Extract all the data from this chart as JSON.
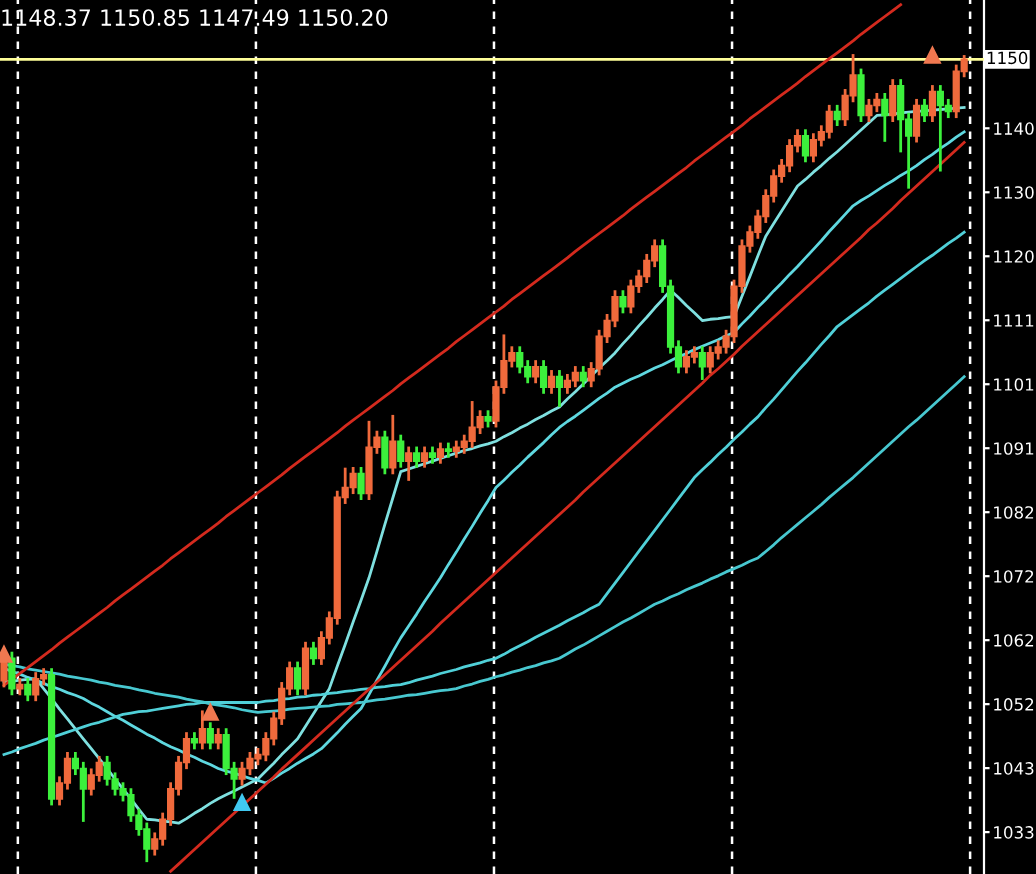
{
  "chart_data": {
    "type": "candlestick",
    "title": "1148.37 1150.85 1147.49 1150.20",
    "categories": [
      null,
      null,
      null,
      null,
      null,
      null,
      null,
      null,
      null,
      null,
      null,
      null,
      null,
      null,
      null,
      null,
      null,
      null,
      null,
      null,
      null,
      null,
      null,
      null,
      null,
      null,
      null,
      null,
      null,
      null,
      null,
      null,
      null,
      null,
      null,
      null,
      null,
      null,
      null,
      null,
      null,
      null,
      null,
      null,
      null,
      null,
      null,
      null,
      null,
      null,
      null,
      null,
      null,
      null,
      null,
      null,
      null,
      null,
      null,
      null,
      null,
      null,
      null,
      null,
      null,
      null,
      null,
      null,
      null,
      null,
      null,
      null,
      null,
      null,
      null,
      null,
      null,
      null,
      null,
      null,
      null,
      null,
      null,
      null,
      null,
      null,
      null,
      null,
      null,
      null,
      null,
      null,
      null,
      null,
      null,
      null,
      null,
      null,
      null,
      null,
      null,
      null,
      null,
      null,
      null,
      null,
      null,
      null,
      null,
      null,
      null,
      null,
      null,
      null,
      null,
      null,
      null,
      null,
      null,
      null,
      null,
      null
    ],
    "colors": [
      "#f06a3c",
      "#3cf03c",
      "#f06a3c",
      "#3cf03c",
      "#f06a3c",
      "#f06a3c",
      "#3cf03c",
      "#f06a3c",
      "#f06a3c",
      "#3cf03c",
      "#3cf03c",
      "#f06a3c",
      "#f06a3c",
      "#3cf03c",
      "#3cf03c",
      "#3cf03c",
      "#3cf03c",
      "#3cf03c",
      "#3cf03c",
      "#f06a3c",
      "#f06a3c",
      "#f06a3c",
      "#f06a3c",
      "#f06a3c",
      "#3cf03c",
      "#f06a3c",
      "#3cf03c",
      "#f06a3c",
      "#3cf03c",
      "#3cf03c",
      "#f06a3c",
      "#f06a3c",
      "#f06a3c",
      "#f06a3c",
      "#f06a3c",
      "#f06a3c",
      "#f06a3c",
      "#3cf03c",
      "#f06a3c",
      "#3cf03c",
      "#f06a3c",
      "#f06a3c",
      "#f06a3c",
      "#f06a3c",
      "#f06a3c",
      "#3cf03c",
      "#f06a3c",
      "#f06a3c",
      "#3cf03c",
      "#f06a3c",
      "#3cf03c",
      "#f06a3c",
      "#3cf03c",
      "#f06a3c",
      "#3cf03c",
      "#f06a3c",
      "#3cf03c",
      "#f06a3c",
      "#f06a3c",
      "#f06a3c",
      "#f06a3c",
      "#3cf03c",
      "#f06a3c",
      "#f06a3c",
      "#f06a3c",
      "#3cf03c",
      "#3cf03c",
      "#f06a3c",
      "#3cf03c",
      "#f06a3c",
      "#3cf03c",
      "#f06a3c",
      "#f06a3c",
      "#3cf03c",
      "#f06a3c",
      "#f06a3c",
      "#f06a3c",
      "#f06a3c",
      "#3cf03c",
      "#f06a3c",
      "#f06a3c",
      "#f06a3c",
      "#f06a3c",
      "#3cf03c",
      "#3cf03c",
      "#3cf03c",
      "#f06a3c",
      "#f06a3c",
      "#3cf03c",
      "#f06a3c",
      "#f06a3c",
      "#f06a3c",
      "#f06a3c",
      "#f06a3c",
      "#f06a3c",
      "#f06a3c",
      "#f06a3c",
      "#f06a3c",
      "#f06a3c",
      "#f06a3c",
      "#f06a3c",
      "#3cf03c",
      "#f06a3c",
      "#f06a3c",
      "#f06a3c",
      "#3cf03c",
      "#f06a3c",
      "#f06a3c",
      "#3cf03c",
      "#f06a3c",
      "#f06a3c",
      "#3cf03c",
      "#f06a3c",
      "#3cf03c",
      "#3cf03c",
      "#f06a3c",
      "#3cf03c",
      "#f06a3c",
      "#3cf03c",
      "#3cf03c",
      "#f06a3c",
      "#f06a3c"
    ],
    "ohlc": [
      [
        1056.0,
        1060.4,
        1055.0,
        1059.4
      ],
      [
        1059.4,
        1060.4,
        1053.8,
        1054.8
      ],
      [
        1054.8,
        1056.4,
        1053.8,
        1055.4
      ],
      [
        1055.4,
        1056.4,
        1052.9,
        1053.9
      ],
      [
        1053.9,
        1057.3,
        1052.9,
        1056.3
      ],
      [
        1056.3,
        1057.9,
        1055.3,
        1056.9
      ],
      [
        1056.9,
        1057.9,
        1037.1,
        1038.1
      ],
      [
        1038.1,
        1041.5,
        1037.1,
        1040.5
      ],
      [
        1040.5,
        1045.2,
        1039.5,
        1044.2
      ],
      [
        1044.2,
        1045.2,
        1041.7,
        1042.7
      ],
      [
        1042.7,
        1043.7,
        1034.6,
        1039.6
      ],
      [
        1039.6,
        1042.7,
        1038.6,
        1041.7
      ],
      [
        1041.7,
        1044.6,
        1040.7,
        1043.6
      ],
      [
        1043.6,
        1044.6,
        1040.1,
        1041.1
      ],
      [
        1041.1,
        1042.1,
        1038.6,
        1039.6
      ],
      [
        1039.6,
        1040.6,
        1037.7,
        1038.7
      ],
      [
        1038.7,
        1039.7,
        1034.6,
        1035.6
      ],
      [
        1035.6,
        1036.6,
        1032.5,
        1033.5
      ],
      [
        1033.5,
        1034.5,
        1028.5,
        1030.5
      ],
      [
        1030.5,
        1033.0,
        1029.5,
        1032.0
      ],
      [
        1032.0,
        1036.0,
        1031.0,
        1035.0
      ],
      [
        1035.0,
        1040.6,
        1034.0,
        1039.6
      ],
      [
        1039.6,
        1044.6,
        1038.6,
        1043.6
      ],
      [
        1043.6,
        1048.2,
        1042.6,
        1047.2
      ],
      [
        1047.2,
        1048.2,
        1045.6,
        1046.6
      ],
      [
        1046.6,
        1051.5,
        1045.6,
        1048.7
      ],
      [
        1048.7,
        1049.7,
        1045.6,
        1046.6
      ],
      [
        1046.6,
        1048.8,
        1045.6,
        1047.8
      ],
      [
        1047.8,
        1048.8,
        1041.7,
        1042.7
      ],
      [
        1042.7,
        1043.7,
        1038.1,
        1041.1
      ],
      [
        1041.1,
        1043.7,
        1040.1,
        1042.7
      ],
      [
        1042.7,
        1045.2,
        1041.7,
        1044.2
      ],
      [
        1044.2,
        1045.8,
        1043.2,
        1044.8
      ],
      [
        1044.8,
        1048.2,
        1043.8,
        1047.2
      ],
      [
        1047.2,
        1051.3,
        1046.2,
        1050.3
      ],
      [
        1050.3,
        1055.8,
        1049.3,
        1054.8
      ],
      [
        1054.8,
        1058.9,
        1053.8,
        1057.9
      ],
      [
        1057.9,
        1058.9,
        1053.8,
        1054.8
      ],
      [
        1054.8,
        1061.9,
        1053.8,
        1060.9
      ],
      [
        1060.9,
        1061.9,
        1058.4,
        1059.4
      ],
      [
        1059.4,
        1063.5,
        1058.4,
        1062.5
      ],
      [
        1062.5,
        1066.5,
        1061.5,
        1065.5
      ],
      [
        1065.5,
        1084.8,
        1064.5,
        1083.8
      ],
      [
        1083.8,
        1088.3,
        1082.8,
        1085.3
      ],
      [
        1085.3,
        1088.4,
        1084.3,
        1087.4
      ],
      [
        1087.4,
        1088.4,
        1083.4,
        1084.4
      ],
      [
        1084.4,
        1095.4,
        1083.4,
        1091.4
      ],
      [
        1091.4,
        1093.9,
        1090.4,
        1092.9
      ],
      [
        1092.9,
        1093.9,
        1087.3,
        1088.3
      ],
      [
        1088.3,
        1096.3,
        1087.3,
        1092.3
      ],
      [
        1092.3,
        1093.3,
        1088.3,
        1089.3
      ],
      [
        1089.3,
        1091.5,
        1086.3,
        1090.5
      ],
      [
        1090.5,
        1091.5,
        1088.3,
        1089.3
      ],
      [
        1089.3,
        1091.5,
        1088.3,
        1090.5
      ],
      [
        1090.5,
        1091.5,
        1088.9,
        1089.9
      ],
      [
        1089.9,
        1092.1,
        1088.9,
        1091.1
      ],
      [
        1091.1,
        1092.1,
        1089.8,
        1090.8
      ],
      [
        1090.8,
        1092.4,
        1089.8,
        1091.4
      ],
      [
        1091.4,
        1093.3,
        1090.4,
        1092.3
      ],
      [
        1092.3,
        1098.4,
        1091.3,
        1094.4
      ],
      [
        1094.4,
        1097.0,
        1093.4,
        1096.0
      ],
      [
        1096.0,
        1097.0,
        1094.4,
        1095.4
      ],
      [
        1095.4,
        1101.5,
        1094.4,
        1100.5
      ],
      [
        1100.5,
        1108.5,
        1099.5,
        1104.5
      ],
      [
        1104.5,
        1106.7,
        1103.5,
        1105.7
      ],
      [
        1105.7,
        1106.7,
        1102.6,
        1103.6
      ],
      [
        1103.6,
        1104.6,
        1101.1,
        1102.1
      ],
      [
        1102.1,
        1104.6,
        1101.1,
        1103.6
      ],
      [
        1103.6,
        1104.6,
        1099.5,
        1100.5
      ],
      [
        1100.5,
        1103.1,
        1099.5,
        1102.1
      ],
      [
        1102.1,
        1103.1,
        1097.5,
        1100.5
      ],
      [
        1100.5,
        1102.5,
        1099.5,
        1101.5
      ],
      [
        1101.5,
        1103.7,
        1100.5,
        1102.7
      ],
      [
        1102.7,
        1103.7,
        1100.5,
        1101.5
      ],
      [
        1101.5,
        1104.3,
        1100.5,
        1103.3
      ],
      [
        1103.3,
        1109.2,
        1102.3,
        1108.2
      ],
      [
        1108.2,
        1111.6,
        1107.2,
        1110.6
      ],
      [
        1110.6,
        1115.2,
        1109.6,
        1114.2
      ],
      [
        1114.2,
        1115.2,
        1111.7,
        1112.7
      ],
      [
        1112.7,
        1116.8,
        1111.7,
        1115.8
      ],
      [
        1115.8,
        1118.3,
        1114.8,
        1117.3
      ],
      [
        1117.3,
        1120.7,
        1116.3,
        1119.7
      ],
      [
        1119.7,
        1122.9,
        1118.7,
        1121.9
      ],
      [
        1121.9,
        1122.9,
        1114.8,
        1115.8
      ],
      [
        1115.8,
        1116.8,
        1105.6,
        1106.6
      ],
      [
        1106.6,
        1107.6,
        1102.6,
        1103.6
      ],
      [
        1103.6,
        1106.1,
        1102.6,
        1105.1
      ],
      [
        1105.1,
        1106.7,
        1104.1,
        1105.7
      ],
      [
        1105.7,
        1106.7,
        1101.6,
        1103.6
      ],
      [
        1103.6,
        1106.7,
        1102.6,
        1105.7
      ],
      [
        1105.7,
        1107.6,
        1104.7,
        1106.6
      ],
      [
        1106.6,
        1109.2,
        1105.6,
        1108.2
      ],
      [
        1108.2,
        1116.8,
        1107.2,
        1115.8
      ],
      [
        1115.8,
        1122.9,
        1114.8,
        1121.9
      ],
      [
        1121.9,
        1125.0,
        1120.9,
        1124.0
      ],
      [
        1124.0,
        1127.4,
        1123.0,
        1126.4
      ],
      [
        1126.4,
        1130.5,
        1125.4,
        1129.5
      ],
      [
        1129.5,
        1133.5,
        1128.5,
        1132.5
      ],
      [
        1132.5,
        1135.1,
        1131.5,
        1134.1
      ],
      [
        1134.1,
        1138.1,
        1133.1,
        1137.1
      ],
      [
        1137.1,
        1139.6,
        1136.1,
        1138.6
      ],
      [
        1138.6,
        1139.6,
        1134.6,
        1135.6
      ],
      [
        1135.6,
        1139.0,
        1134.6,
        1138.0
      ],
      [
        1138.0,
        1140.2,
        1137.0,
        1139.2
      ],
      [
        1139.2,
        1143.3,
        1138.2,
        1142.3
      ],
      [
        1142.3,
        1143.3,
        1140.1,
        1141.1
      ],
      [
        1141.1,
        1145.7,
        1140.1,
        1144.7
      ],
      [
        1144.7,
        1151.0,
        1143.7,
        1147.8
      ],
      [
        1147.8,
        1148.8,
        1140.7,
        1141.7
      ],
      [
        1141.7,
        1144.2,
        1140.7,
        1143.2
      ],
      [
        1143.2,
        1145.1,
        1142.2,
        1144.1
      ],
      [
        1144.1,
        1145.1,
        1137.7,
        1141.7
      ],
      [
        1141.7,
        1147.2,
        1140.7,
        1146.2
      ],
      [
        1146.2,
        1147.2,
        1136.1,
        1141.1
      ],
      [
        1141.1,
        1142.1,
        1130.6,
        1138.6
      ],
      [
        1138.6,
        1144.2,
        1137.6,
        1143.2
      ],
      [
        1143.2,
        1144.2,
        1140.7,
        1141.7
      ],
      [
        1141.7,
        1146.3,
        1140.7,
        1145.3
      ],
      [
        1145.3,
        1146.3,
        1133.2,
        1143.2
      ],
      [
        1143.2,
        1144.2,
        1141.3,
        1142.3
      ],
      [
        1142.3,
        1149.4,
        1141.3,
        1148.4
      ],
      [
        1148.37,
        1150.85,
        1147.49,
        1150.2
      ]
    ],
    "series": [
      {
        "type": "line",
        "color": "#7fe0e0",
        "values": [
          1055.8,
          1055.9,
          1056.1,
          1056.2,
          1056.3,
          1054.8,
          1053.3,
          1051.7,
          1050.2,
          1048.7,
          1047.2,
          1045.7,
          1044.2,
          1042.7,
          1041.1,
          1039.6,
          1038.1,
          1036.5,
          1035.0,
          1034.9,
          1034.7,
          1034.6,
          1034.4,
          1035.1,
          1035.9,
          1036.6,
          1037.4,
          1038.1,
          1038.7,
          1039.3,
          1039.9,
          1040.5,
          1041.1,
          1042.3,
          1043.5,
          1044.8,
          1046.0,
          1047.2,
          1049.1,
          1051.0,
          1052.9,
          1054.8,
          1058.2,
          1061.5,
          1064.9,
          1068.2,
          1071.6,
          1075.6,
          1079.7,
          1083.7,
          1087.7,
          1088.1,
          1088.5,
          1088.9,
          1089.3,
          1089.7,
          1090.1,
          1090.5,
          1090.9,
          1091.2,
          1091.6,
          1091.9,
          1092.3,
          1093.0,
          1093.6,
          1094.3,
          1094.9,
          1095.6,
          1096.2,
          1096.9,
          1097.5,
          1098.7,
          1099.8,
          1101.0,
          1102.2,
          1103.4,
          1104.5,
          1105.7,
          1107.1,
          1108.4,
          1109.8,
          1111.1,
          1112.5,
          1113.8,
          1115.2,
          1114.1,
          1112.9,
          1111.8,
          1110.6,
          1110.8,
          1110.9,
          1111.1,
          1111.2,
          1114.3,
          1117.3,
          1120.4,
          1123.4,
          1125.3,
          1127.2,
          1129.1,
          1131.0,
          1132.0,
          1133.1,
          1134.1,
          1135.2,
          1136.2,
          1137.3,
          1138.4,
          1139.5,
          1140.6,
          1141.7,
          1141.8,
          1141.9,
          1142.1,
          1142.2,
          1142.3,
          1142.4,
          1142.5,
          1142.6,
          1142.7,
          1142.8,
          1142.9
        ]
      },
      {
        "type": "line",
        "color": "#5fd8e0",
        "values": [
          1057.9,
          1057.4,
          1057.0,
          1056.5,
          1056.1,
          1055.6,
          1055.1,
          1054.7,
          1054.2,
          1053.8,
          1053.3,
          1052.6,
          1052.0,
          1051.3,
          1050.6,
          1050.0,
          1049.3,
          1048.6,
          1047.9,
          1047.3,
          1046.6,
          1046.0,
          1045.5,
          1044.9,
          1044.4,
          1043.8,
          1043.3,
          1042.7,
          1042.3,
          1042.0,
          1041.6,
          1041.2,
          1040.9,
          1040.5,
          1041.2,
          1042.0,
          1042.7,
          1043.5,
          1044.2,
          1044.9,
          1045.7,
          1046.9,
          1048.1,
          1049.4,
          1050.6,
          1051.8,
          1053.9,
          1056.1,
          1058.2,
          1060.4,
          1062.5,
          1064.3,
          1066.1,
          1068.0,
          1069.8,
          1071.6,
          1073.6,
          1075.5,
          1077.5,
          1079.4,
          1081.4,
          1083.3,
          1085.3,
          1086.4,
          1087.6,
          1088.7,
          1089.9,
          1091.0,
          1092.1,
          1093.3,
          1094.4,
          1095.3,
          1096.1,
          1097.0,
          1097.9,
          1098.8,
          1099.6,
          1100.5,
          1101.1,
          1101.7,
          1102.2,
          1102.8,
          1103.4,
          1103.9,
          1104.5,
          1105.1,
          1105.6,
          1106.2,
          1106.7,
          1107.2,
          1107.7,
          1108.3,
          1108.8,
          1110.1,
          1111.3,
          1112.6,
          1113.8,
          1115.1,
          1116.3,
          1117.6,
          1118.8,
          1120.1,
          1121.4,
          1122.7,
          1124.1,
          1125.4,
          1126.7,
          1128.0,
          1128.8,
          1129.5,
          1130.3,
          1131.1,
          1131.8,
          1132.6,
          1133.3,
          1134.1,
          1135.0,
          1135.8,
          1136.7,
          1137.5,
          1138.4,
          1139.2
        ]
      },
      {
        "type": "line",
        "color": "#50d0d8",
        "values": [
          1044.8,
          1045.2,
          1045.7,
          1046.1,
          1046.5,
          1047.0,
          1047.4,
          1047.8,
          1048.2,
          1048.6,
          1049.0,
          1049.4,
          1049.7,
          1050.1,
          1050.5,
          1050.9,
          1051.1,
          1051.3,
          1051.4,
          1051.6,
          1051.8,
          1052.0,
          1052.2,
          1052.4,
          1052.5,
          1052.7,
          1052.7,
          1052.7,
          1052.7,
          1052.7,
          1052.7,
          1052.7,
          1052.7,
          1052.9,
          1053.0,
          1053.2,
          1053.3,
          1053.5,
          1053.6,
          1053.8,
          1053.9,
          1054.1,
          1054.2,
          1054.4,
          1054.5,
          1054.7,
          1054.8,
          1055.0,
          1055.1,
          1055.3,
          1055.4,
          1055.7,
          1056.1,
          1056.4,
          1056.7,
          1057.1,
          1057.4,
          1057.7,
          1058.1,
          1058.4,
          1058.7,
          1059.1,
          1059.4,
          1060.0,
          1060.7,
          1061.3,
          1061.9,
          1062.6,
          1063.2,
          1063.8,
          1064.4,
          1065.1,
          1065.7,
          1066.3,
          1067.0,
          1067.6,
          1069.2,
          1070.8,
          1072.4,
          1074.0,
          1075.6,
          1077.2,
          1078.8,
          1080.4,
          1082.0,
          1083.6,
          1085.2,
          1086.8,
          1088.0,
          1089.1,
          1090.3,
          1091.4,
          1092.6,
          1093.7,
          1094.9,
          1096.0,
          1097.4,
          1098.7,
          1100.1,
          1101.5,
          1102.9,
          1104.2,
          1105.6,
          1107.0,
          1108.3,
          1109.7,
          1110.6,
          1111.5,
          1112.4,
          1113.3,
          1114.3,
          1115.2,
          1116.1,
          1117.0,
          1117.9,
          1118.8,
          1119.7,
          1120.5,
          1121.4,
          1122.3,
          1123.1,
          1124.0
        ]
      },
      {
        "type": "line",
        "color": "#48c8d0",
        "values": [
          1058.5,
          1058.3,
          1058.1,
          1057.8,
          1057.6,
          1057.4,
          1057.2,
          1057.0,
          1056.7,
          1056.5,
          1056.3,
          1056.1,
          1055.8,
          1055.6,
          1055.3,
          1055.1,
          1054.9,
          1054.6,
          1054.4,
          1054.1,
          1053.9,
          1053.7,
          1053.5,
          1053.2,
          1053.0,
          1052.8,
          1052.5,
          1052.3,
          1052.1,
          1051.9,
          1051.6,
          1051.4,
          1051.2,
          1051.3,
          1051.4,
          1051.5,
          1051.7,
          1051.8,
          1051.9,
          1052.0,
          1052.1,
          1052.2,
          1052.4,
          1052.5,
          1052.6,
          1052.7,
          1052.9,
          1053.1,
          1053.2,
          1053.4,
          1053.6,
          1053.8,
          1053.9,
          1054.1,
          1054.3,
          1054.5,
          1054.6,
          1054.8,
          1055.2,
          1055.5,
          1055.9,
          1056.2,
          1056.6,
          1056.9,
          1057.3,
          1057.6,
          1058.0,
          1058.3,
          1058.7,
          1059.0,
          1059.4,
          1060.1,
          1060.8,
          1061.4,
          1062.1,
          1062.8,
          1063.5,
          1064.2,
          1064.9,
          1065.5,
          1066.2,
          1066.9,
          1067.6,
          1068.1,
          1068.7,
          1069.2,
          1069.8,
          1070.3,
          1070.8,
          1071.4,
          1071.9,
          1072.5,
          1073.0,
          1073.5,
          1074.1,
          1074.6,
          1075.6,
          1076.6,
          1077.7,
          1078.7,
          1079.7,
          1080.7,
          1081.7,
          1082.7,
          1083.8,
          1084.8,
          1085.8,
          1086.8,
          1087.9,
          1089.0,
          1090.1,
          1091.2,
          1092.3,
          1093.4,
          1094.5,
          1095.5,
          1096.6,
          1097.7,
          1098.8,
          1099.9,
          1101.0,
          1102.1
        ]
      },
      {
        "type": "line",
        "color": "#d42a1e",
        "values": [
          1055.3,
          1056.2,
          1057.1,
          1058.0,
          1058.9,
          1059.8,
          1060.7,
          1061.7,
          1062.6,
          1063.5,
          1064.4,
          1065.3,
          1066.2,
          1067.1,
          1068.1,
          1069.0,
          1069.9,
          1070.8,
          1071.7,
          1072.6,
          1073.5,
          1074.5,
          1075.4,
          1076.3,
          1077.2,
          1078.1,
          1079.0,
          1079.9,
          1080.9,
          1081.8,
          1082.7,
          1083.6,
          1084.5,
          1085.4,
          1086.3,
          1087.2,
          1088.2,
          1089.1,
          1090.0,
          1090.9,
          1091.8,
          1092.7,
          1093.6,
          1094.6,
          1095.5,
          1096.4,
          1097.3,
          1098.2,
          1099.1,
          1100.0,
          1101.0,
          1101.9,
          1102.8,
          1103.7,
          1104.6,
          1105.5,
          1106.4,
          1107.4,
          1108.3,
          1109.2,
          1110.1,
          1111.0,
          1111.9,
          1112.8,
          1113.8,
          1114.7,
          1115.6,
          1116.5,
          1117.4,
          1118.3,
          1119.2,
          1120.1,
          1121.1,
          1122.0,
          1122.9,
          1123.8,
          1124.7,
          1125.6,
          1126.5,
          1127.5,
          1128.4,
          1129.3,
          1130.2,
          1131.1,
          1132.0,
          1132.9,
          1133.8,
          1134.8,
          1135.7,
          1136.6,
          1137.5,
          1138.4,
          1139.3,
          1140.2,
          1141.2,
          1142.1,
          1143.0,
          1143.9,
          1144.8,
          1145.7,
          1146.6,
          1147.6,
          1148.5,
          1149.4,
          1150.3,
          1151.2,
          1152.1,
          1153.0,
          1154.0,
          1154.9,
          1155.8,
          1156.7,
          1157.6,
          1158.5,
          null,
          null,
          null,
          null,
          null,
          null,
          null,
          null
        ]
      },
      {
        "type": "line",
        "color": "#d42a1e",
        "values": [
          null,
          null,
          null,
          null,
          null,
          null,
          null,
          null,
          null,
          null,
          null,
          null,
          null,
          null,
          null,
          null,
          null,
          null,
          null,
          null,
          null,
          1027.1,
          1028.2,
          1029.3,
          1030.4,
          1031.5,
          1032.6,
          1033.7,
          1034.8,
          1035.9,
          1037.0,
          1038.1,
          1039.2,
          1040.3,
          1041.4,
          1042.6,
          1043.7,
          1044.8,
          1045.9,
          1047.0,
          1048.1,
          1049.2,
          1050.3,
          1051.4,
          1052.5,
          1053.6,
          1054.7,
          1055.8,
          1056.9,
          1058.0,
          1059.1,
          1060.2,
          1061.3,
          1062.4,
          1063.5,
          1064.7,
          1065.8,
          1066.9,
          1068.0,
          1069.1,
          1070.2,
          1071.3,
          1072.4,
          1073.5,
          1074.6,
          1075.7,
          1076.8,
          1077.9,
          1079.0,
          1080.1,
          1081.2,
          1082.3,
          1083.4,
          1084.6,
          1085.7,
          1086.8,
          1087.9,
          1089.0,
          1090.1,
          1091.2,
          1092.3,
          1093.4,
          1094.5,
          1095.6,
          1096.7,
          1097.8,
          1098.9,
          1100.0,
          1101.1,
          1102.3,
          1103.3,
          1104.4,
          1105.5,
          1106.7,
          1107.8,
          1108.9,
          1110.0,
          1111.1,
          1112.2,
          1113.3,
          1114.4,
          1115.5,
          1116.6,
          1117.7,
          1118.8,
          1119.9,
          1121.0,
          1122.1,
          1123.2,
          1124.4,
          1125.4,
          1126.5,
          1127.6,
          1128.8,
          1129.9,
          1131.0,
          1132.1,
          1133.2,
          1134.3,
          1135.4,
          1136.5,
          1137.6
        ]
      },
      {
        "type": "scatter",
        "color": "#f07850",
        "marker": "triangle",
        "values": [
          1060.0,
          null,
          null,
          null,
          null,
          null,
          null,
          null,
          null,
          null,
          null,
          null,
          null,
          null,
          null,
          null,
          null,
          null,
          null,
          null,
          null,
          null,
          null,
          null,
          null,
          null,
          1051.2,
          null,
          null,
          null,
          null,
          null,
          null,
          null,
          null,
          null,
          null,
          null,
          null,
          null,
          null,
          null,
          null,
          null,
          null,
          null,
          null,
          null,
          null,
          null,
          null,
          null,
          null,
          null,
          null,
          null,
          null,
          null,
          null,
          null,
          null,
          null,
          null,
          null,
          null,
          null,
          null,
          null,
          null,
          null,
          null,
          null,
          null,
          null,
          null,
          null,
          null,
          null,
          null,
          null,
          null,
          null,
          null,
          null,
          null,
          null,
          null,
          null,
          null,
          null,
          null,
          null,
          null,
          null,
          null,
          null,
          null,
          null,
          null,
          null,
          null,
          null,
          null,
          null,
          null,
          null,
          null,
          null,
          null,
          null,
          null,
          null,
          null,
          null,
          null,
          null,
          null,
          1150.8,
          null,
          null,
          null,
          null
        ]
      },
      {
        "type": "scatter",
        "color": "#40c8f0",
        "marker": "triangle",
        "values": [
          null,
          null,
          null,
          null,
          null,
          null,
          null,
          null,
          null,
          null,
          null,
          null,
          null,
          null,
          null,
          null,
          null,
          null,
          null,
          null,
          null,
          null,
          null,
          null,
          null,
          null,
          null,
          null,
          null,
          null,
          1037.5,
          null,
          null,
          null,
          null,
          null,
          null,
          null,
          null,
          null,
          null,
          null,
          null,
          null,
          null,
          null,
          null,
          null,
          null,
          null,
          null,
          null,
          null,
          null,
          null,
          null,
          null,
          null,
          null,
          null,
          null,
          null,
          null,
          null,
          null,
          null,
          null,
          null,
          null,
          null,
          null,
          null,
          null,
          null,
          null,
          null,
          null,
          null,
          null,
          null,
          null,
          null,
          null,
          null,
          null,
          null,
          null,
          null,
          null,
          null,
          null,
          null,
          null,
          null,
          null,
          null,
          null,
          null,
          null,
          null,
          null,
          null,
          null,
          null,
          null,
          null,
          null,
          null,
          null,
          null,
          null,
          null,
          null,
          null,
          null,
          null,
          null,
          null,
          null,
          null,
          null,
          null
        ]
      }
    ],
    "ref_lines": [
      {
        "axis": "y",
        "value": 1150.2,
        "label": "1150",
        "color": "#ffff99"
      }
    ],
    "ylim": [
      1026.7,
      1159.2
    ],
    "yticks": [
      {
        "value": 1139.75,
        "label": "1140"
      },
      {
        "value": 1130.05,
        "label": "1130"
      },
      {
        "value": 1120.35,
        "label": "1120"
      },
      {
        "value": 1110.65,
        "label": "1111"
      },
      {
        "value": 1100.95,
        "label": "1101"
      },
      {
        "value": 1091.25,
        "label": "1091"
      },
      {
        "value": 1081.55,
        "label": "1082"
      },
      {
        "value": 1071.85,
        "label": "1072"
      },
      {
        "value": 1062.15,
        "label": "1062"
      },
      {
        "value": 1052.45,
        "label": "1052"
      },
      {
        "value": 1042.75,
        "label": "1043"
      },
      {
        "value": 1033.05,
        "label": "1033"
      }
    ],
    "grid": "x",
    "tick_labels": "y"
  }
}
